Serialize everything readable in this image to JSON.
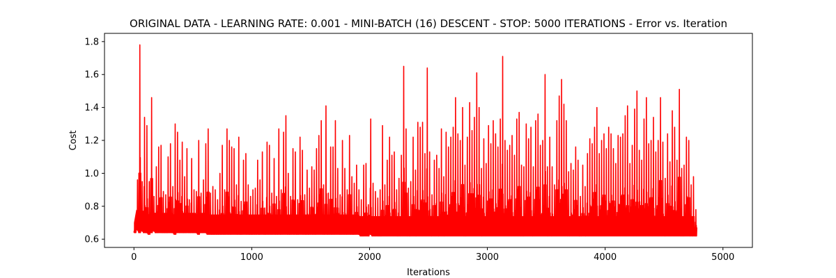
{
  "chart_data": {
    "type": "line",
    "title": "ORIGINAL DATA - LEARNING RATE: 0.001 - MINI-BATCH (16) DESCENT - STOP: 5000 ITERATIONS - Error vs. Iteration",
    "xlabel": "Iterations",
    "ylabel": "Cost",
    "xlim": [
      -250,
      5250
    ],
    "ylim": [
      0.55,
      1.85
    ],
    "xticks": [
      0,
      1000,
      2000,
      3000,
      4000,
      5000
    ],
    "yticks": [
      0.6,
      0.8,
      1.0,
      1.2,
      1.4,
      1.6,
      1.8
    ],
    "xtick_labels": [
      "0",
      "1000",
      "2000",
      "3000",
      "4000",
      "5000"
    ],
    "ytick_labels": [
      "0.6",
      "0.8",
      "1.0",
      "1.2",
      "1.4",
      "1.6",
      "1.8"
    ],
    "grid": false,
    "legend": "none",
    "series": [
      {
        "color": "#ff0000",
        "x_start": 0,
        "x_end": 5000,
        "x_step": 20,
        "values": [
          0.7,
          0.96,
          1.78,
          0.95,
          1.34,
          1.29,
          0.95,
          1.46,
          0.86,
          1.04,
          1.16,
          1.17,
          0.89,
          0.87,
          1.1,
          1.18,
          0.92,
          1.3,
          1.25,
          1.08,
          1.19,
          0.98,
          1.15,
          0.84,
          1.09,
          0.9,
          0.89,
          1.2,
          0.88,
          0.96,
          1.18,
          1.27,
          0.88,
          0.92,
          0.9,
          0.84,
          1.0,
          1.17,
          0.9,
          1.27,
          1.2,
          1.16,
          1.15,
          0.93,
          1.22,
          0.83,
          1.08,
          1.12,
          0.93,
          0.86,
          0.9,
          0.91,
          1.08,
          0.96,
          1.13,
          0.79,
          1.19,
          1.17,
          0.88,
          1.09,
          0.86,
          1.27,
          0.9,
          1.25,
          1.35,
          1.0,
          0.86,
          1.15,
          1.13,
          0.84,
          1.22,
          1.14,
          0.87,
          1.02,
          0.91,
          1.04,
          1.02,
          1.15,
          1.23,
          1.32,
          0.93,
          1.41,
          0.88,
          1.16,
          1.16,
          1.32,
          1.03,
          0.87,
          1.2,
          1.03,
          0.9,
          1.23,
          0.98,
          0.94,
          1.05,
          0.9,
          0.84,
          1.05,
          1.06,
          0.81,
          1.33,
          0.94,
          0.89,
          0.85,
          0.9,
          1.29,
          0.93,
          1.08,
          1.22,
          1.11,
          1.13,
          0.9,
          0.97,
          1.11,
          1.65,
          1.27,
          0.91,
          0.95,
          1.22,
          1.02,
          1.31,
          1.28,
          1.31,
          1.12,
          1.64,
          1.13,
          0.87,
          1.08,
          1.11,
          1.03,
          1.27,
          0.98,
          1.25,
          1.16,
          1.22,
          1.28,
          1.46,
          1.24,
          1.2,
          1.4,
          1.05,
          1.22,
          1.43,
          1.26,
          1.34,
          1.61,
          1.4,
          1.03,
          1.21,
          1.06,
          1.29,
          1.18,
          1.32,
          1.24,
          1.16,
          1.33,
          1.71,
          1.2,
          1.14,
          1.17,
          1.23,
          1.11,
          1.33,
          1.37,
          1.05,
          1.04,
          1.3,
          1.21,
          1.28,
          1.04,
          1.32,
          1.36,
          1.17,
          1.2,
          1.6,
          1.04,
          1.22,
          1.04,
          0.93,
          1.32,
          1.47,
          1.57,
          1.42,
          1.32,
          1.01,
          1.06,
          1.02,
          1.16,
          1.08,
          0.86,
          1.05,
          0.92,
          1.12,
          1.21,
          1.18,
          1.28,
          1.4,
          1.12,
          1.2,
          1.24,
          1.15,
          1.28,
          1.24,
          1.15,
          1.06,
          1.23,
          1.22,
          1.24,
          1.35,
          1.41,
          1.06,
          1.17,
          1.39,
          1.5,
          1.14,
          1.08,
          1.33,
          1.46,
          1.18,
          1.2,
          1.34,
          1.13,
          1.2,
          1.46,
          1.19,
          0.97,
          1.24,
          1.07,
          1.38,
          1.28,
          1.08,
          1.51,
          1.03,
          1.05,
          1.22,
          1.2,
          0.93,
          0.98,
          0.78
        ],
        "min_values": [
          0.64,
          0.66,
          0.64,
          0.65,
          0.64,
          0.64,
          0.63,
          0.64,
          0.65,
          0.64,
          0.64,
          0.64,
          0.64,
          0.64,
          0.64,
          0.64,
          0.64,
          0.63,
          0.64,
          0.64,
          0.64,
          0.64,
          0.64,
          0.64,
          0.64,
          0.64,
          0.64,
          0.63,
          0.64,
          0.64,
          0.64,
          0.63,
          0.63,
          0.63,
          0.63,
          0.63,
          0.63,
          0.63,
          0.63,
          0.63,
          0.63,
          0.63,
          0.63,
          0.63,
          0.63,
          0.63,
          0.63,
          0.63,
          0.63,
          0.63,
          0.63,
          0.63,
          0.63,
          0.63,
          0.63,
          0.63,
          0.63,
          0.63,
          0.63,
          0.63,
          0.63,
          0.63,
          0.63,
          0.63,
          0.63,
          0.63,
          0.63,
          0.63,
          0.63,
          0.63,
          0.63,
          0.63,
          0.63,
          0.63,
          0.63,
          0.63,
          0.63,
          0.63,
          0.63,
          0.63,
          0.63,
          0.63,
          0.63,
          0.63,
          0.63,
          0.63,
          0.63,
          0.63,
          0.63,
          0.63,
          0.63,
          0.63,
          0.63,
          0.63,
          0.63,
          0.63,
          0.62,
          0.62,
          0.62,
          0.62,
          0.63,
          0.62,
          0.62,
          0.62,
          0.62,
          0.62,
          0.62,
          0.62,
          0.62,
          0.62,
          0.62,
          0.62,
          0.62,
          0.62,
          0.62,
          0.62,
          0.62,
          0.62,
          0.62,
          0.62,
          0.62,
          0.62,
          0.62,
          0.62,
          0.62,
          0.62,
          0.62,
          0.62,
          0.62,
          0.62,
          0.62,
          0.62,
          0.62,
          0.62,
          0.62,
          0.62,
          0.62,
          0.62,
          0.62,
          0.62,
          0.62,
          0.62,
          0.62,
          0.62,
          0.62,
          0.62,
          0.62,
          0.62,
          0.62,
          0.62,
          0.62,
          0.62,
          0.62,
          0.62,
          0.62,
          0.62,
          0.62,
          0.62,
          0.62,
          0.62,
          0.62,
          0.62,
          0.62,
          0.62,
          0.62,
          0.62,
          0.62,
          0.62,
          0.62,
          0.62,
          0.62,
          0.62,
          0.62,
          0.62,
          0.62,
          0.62,
          0.62,
          0.62,
          0.62,
          0.62,
          0.62,
          0.62,
          0.62,
          0.62,
          0.62,
          0.62,
          0.62,
          0.62,
          0.62,
          0.62,
          0.62,
          0.62,
          0.62,
          0.62,
          0.62,
          0.62,
          0.62,
          0.62,
          0.62,
          0.62,
          0.62,
          0.62,
          0.62,
          0.62,
          0.62,
          0.62,
          0.62,
          0.62,
          0.62,
          0.62,
          0.62,
          0.62,
          0.62,
          0.62,
          0.62,
          0.62,
          0.62,
          0.62,
          0.62,
          0.62,
          0.62,
          0.62,
          0.62,
          0.62,
          0.62,
          0.62,
          0.62,
          0.62,
          0.62,
          0.62,
          0.62,
          0.62,
          0.62,
          0.62,
          0.62,
          0.62,
          0.62,
          0.62,
          0.62,
          0.62,
          0.62,
          0.62,
          0.62,
          0.62,
          0.62,
          0.62,
          0.62,
          0.62,
          0.62,
          0.63
        ]
      }
    ]
  }
}
